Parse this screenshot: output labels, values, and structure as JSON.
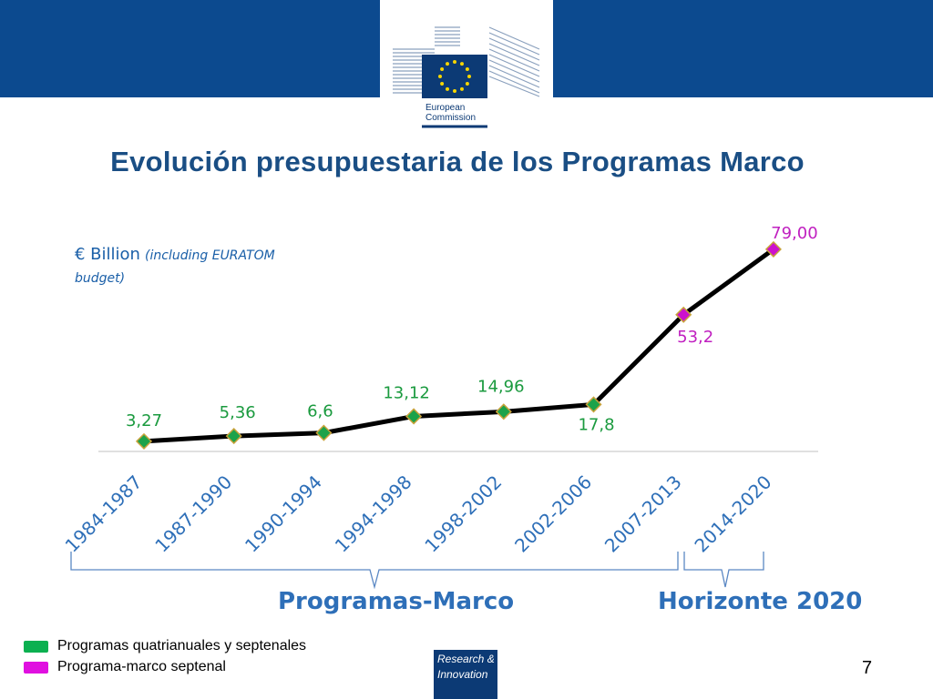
{
  "header": {
    "logo_line1": "European",
    "logo_line2": "Commission",
    "banner_color": "#0c4a8f"
  },
  "title": "Evolución presupuestaria de los Programas Marco",
  "chart_data": {
    "type": "line",
    "unit_note": "€ Billion",
    "unit_note_italic": "(including EURATOM budget)",
    "categories": [
      "1984-1987",
      "1987-1990",
      "1990-1994",
      "1994-1998",
      "1998-2002",
      "2002-2006",
      "2007-2013",
      "2014-2020"
    ],
    "values": [
      3.27,
      5.36,
      6.6,
      13.12,
      14.96,
      17.8,
      53.2,
      79.0
    ],
    "data_labels": [
      "3,27",
      "5,36",
      "6,6",
      "13,12",
      "14,96",
      "17,8",
      "53,2",
      "79,00"
    ],
    "point_groups": [
      "quadriennial",
      "quadriennial",
      "quadriennial",
      "quadriennial",
      "quadriennial",
      "quadriennial",
      "septennial",
      "septennial"
    ],
    "ylim": [
      0,
      85
    ],
    "grid": false,
    "line_color": "#000000",
    "group_colors": {
      "quadriennial": "#1ca24a",
      "septennial": "#cc11cc"
    },
    "label_colors": {
      "quadriennial": "#1a9a3e",
      "septennial": "#c020c0"
    },
    "tick_color": "#2e6fb8"
  },
  "brackets": {
    "programas_marco": "Programas-Marco",
    "horizonte": "Horizonte 2020"
  },
  "legend": [
    {
      "label": "Programas quatrianuales y septenales",
      "color": "#0bb050"
    },
    {
      "label": "Programa-marco septenal",
      "color": "#e010e0"
    }
  ],
  "footer": {
    "ri_line1": "Research &",
    "ri_line2": "Innovation",
    "page_number": "7"
  }
}
